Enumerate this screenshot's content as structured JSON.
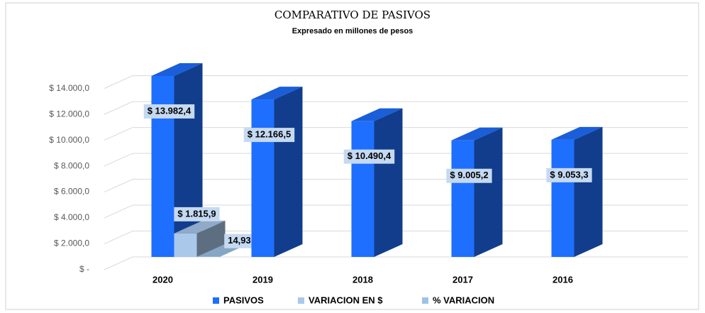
{
  "chart_data": {
    "type": "bar3d",
    "title": "COMPARATIVO DE PASIVOS",
    "subtitle": "Expresado en millones de pesos",
    "categories": [
      "2020",
      "2019",
      "2018",
      "2017",
      "2016"
    ],
    "series": [
      {
        "name": "PASIVOS",
        "color": "#1f6fff",
        "values": [
          13982.4,
          12166.5,
          10490.4,
          9005.2,
          9053.3
        ],
        "value_labels": [
          "$ 13.982,4",
          "$ 12.166,5",
          "$ 10.490,4",
          "$ 9.005,2",
          "$ 9.053,3"
        ]
      },
      {
        "name": "VARIACION EN $",
        "color": "#a9c8ea",
        "values": [
          1815.9,
          null,
          null,
          null,
          null
        ],
        "value_labels": [
          "$ 1.815,9",
          null,
          null,
          null,
          null
        ]
      },
      {
        "name": "% VARIACION",
        "color": "#9dc3e6",
        "values": [
          14.93,
          null,
          null,
          null,
          null
        ],
        "value_labels": [
          "14,93",
          null,
          null,
          null,
          null
        ]
      }
    ],
    "ylim": [
      0,
      16000
    ],
    "yticks": [
      {
        "value": 0,
        "label": "$ -"
      },
      {
        "value": 2000,
        "label": "$ 2.000,0"
      },
      {
        "value": 4000,
        "label": "$ 4.000,0"
      },
      {
        "value": 6000,
        "label": "$ 6.000,0"
      },
      {
        "value": 8000,
        "label": "$ 8.000,0"
      },
      {
        "value": 10000,
        "label": "$ 10.000,0"
      },
      {
        "value": 12000,
        "label": "$ 12.000,0"
      },
      {
        "value": 14000,
        "label": "$ 14.000,0"
      }
    ],
    "grid": true
  }
}
